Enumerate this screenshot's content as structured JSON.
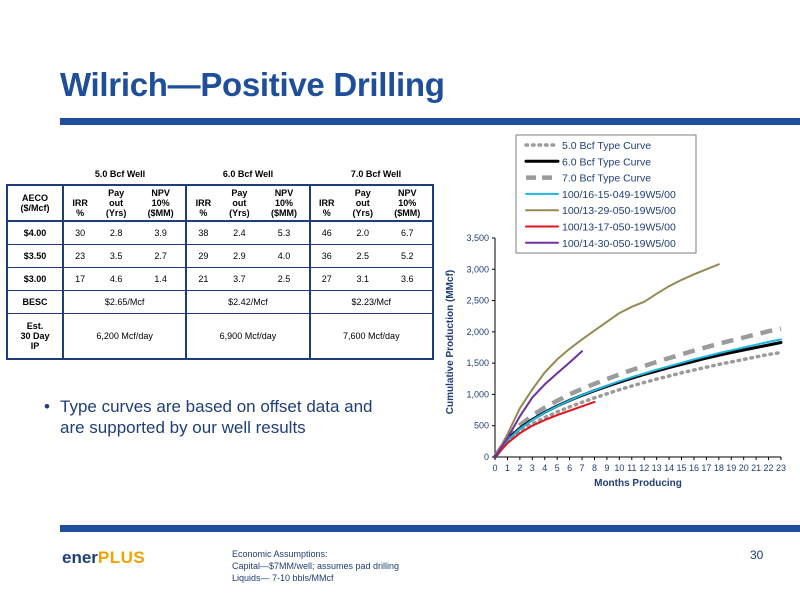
{
  "slide": {
    "title": "Wilrich—Positive Drilling",
    "bullet": "Type curves are based on offset data and are supported by our well results",
    "logo_part1": "ener",
    "logo_part2": "PLUS",
    "page_number": "30",
    "footnote": [
      "Economic Assumptions:",
      "Capital—$7MM/well; assumes pad drilling",
      "Liquids— 7-10 bbls/MMcf"
    ],
    "colors": {
      "brand_blue": "#1f4e9a",
      "logo_orange": "#f3a200"
    }
  },
  "table": {
    "groups": [
      "5.0 Bcf Well",
      "6.0 Bcf Well",
      "7.0 Bcf Well"
    ],
    "header_first": [
      "AECO",
      "($/Mcf)"
    ],
    "sub_headers": [
      [
        "IRR",
        "%"
      ],
      [
        "Pay",
        "out",
        "(Yrs)"
      ],
      [
        "NPV",
        "10%",
        "($MM)"
      ]
    ],
    "rows": [
      {
        "label": "$4.00",
        "values": [
          "30",
          "2.8",
          "3.9",
          "38",
          "2.4",
          "5.3",
          "46",
          "2.0",
          "6.7"
        ]
      },
      {
        "label": "$3.50",
        "values": [
          "23",
          "3.5",
          "2.7",
          "29",
          "2.9",
          "4.0",
          "36",
          "2.5",
          "5.2"
        ]
      },
      {
        "label": "$3.00",
        "values": [
          "17",
          "4.6",
          "1.4",
          "21",
          "3.7",
          "2.5",
          "27",
          "3.1",
          "3.6"
        ]
      }
    ],
    "besc": {
      "label": "BESC",
      "values": [
        "$2.65/Mcf",
        "$2.42/Mcf",
        "$2.23/Mcf"
      ]
    },
    "ip": {
      "label": [
        "Est.",
        "30 Day",
        "IP"
      ],
      "values": [
        "6,200 Mcf/day",
        "6,900 Mcf/day",
        "7,600 Mcf/day"
      ]
    }
  },
  "chart_data": {
    "type": "line",
    "xlabel": "Months Producing",
    "ylabel": "Cumulative Production (MMcf)",
    "xlim": [
      0,
      23
    ],
    "ylim": [
      0,
      3500
    ],
    "x_ticks": [
      "0",
      "1",
      "2",
      "3",
      "4",
      "5",
      "6",
      "7",
      "8",
      "9",
      "10",
      "11",
      "12",
      "13",
      "14",
      "15",
      "16",
      "17",
      "18",
      "19",
      "20",
      "21",
      "22",
      "23"
    ],
    "y_ticks": [
      "0",
      "500",
      "1,000",
      "1,500",
      "2,000",
      "2,500",
      "3,000",
      "3,500"
    ],
    "grid": false,
    "legend_position": "top",
    "series": [
      {
        "name": "5.0 Bcf Type Curve",
        "color": "#9b9b9b",
        "style": "dotted",
        "x": [
          0,
          1,
          2,
          3,
          4,
          5,
          6,
          7,
          8,
          9,
          10,
          11,
          12,
          13,
          14,
          15,
          16,
          17,
          18,
          19,
          20,
          21,
          22,
          23
        ],
        "y": [
          0,
          250,
          410,
          530,
          630,
          720,
          800,
          875,
          945,
          1010,
          1075,
          1135,
          1190,
          1245,
          1295,
          1345,
          1390,
          1435,
          1480,
          1520,
          1560,
          1600,
          1640,
          1670
        ]
      },
      {
        "name": "6.0 Bcf Type Curve",
        "color": "#000000",
        "style": "solid-thick",
        "x": [
          0,
          1,
          2,
          3,
          4,
          5,
          6,
          7,
          8,
          9,
          10,
          11,
          12,
          13,
          14,
          15,
          16,
          17,
          18,
          19,
          20,
          21,
          22,
          23
        ],
        "y": [
          0,
          280,
          460,
          600,
          715,
          815,
          905,
          985,
          1060,
          1130,
          1195,
          1260,
          1320,
          1375,
          1430,
          1480,
          1530,
          1580,
          1625,
          1670,
          1710,
          1750,
          1790,
          1830
        ]
      },
      {
        "name": "7.0 Bcf Type Curve",
        "color": "#9b9b9b",
        "style": "dashed",
        "x": [
          0,
          1,
          2,
          3,
          4,
          5,
          6,
          7,
          8,
          9,
          10,
          11,
          12,
          13,
          14,
          15,
          16,
          17,
          18,
          19,
          20,
          21,
          22,
          23
        ],
        "y": [
          0,
          310,
          510,
          665,
          790,
          900,
          1000,
          1090,
          1170,
          1245,
          1320,
          1390,
          1455,
          1520,
          1580,
          1640,
          1700,
          1755,
          1810,
          1860,
          1910,
          1960,
          2010,
          2050
        ]
      },
      {
        "name": "100/16-15-049-19W5/00",
        "color": "#1fb5e0",
        "style": "solid",
        "x": [
          0,
          1,
          2,
          3,
          4,
          5,
          6,
          7,
          8,
          9,
          10,
          11,
          12,
          13,
          14,
          15,
          16,
          17,
          18,
          19,
          20,
          21,
          22,
          23
        ],
        "y": [
          0,
          270,
          450,
          590,
          710,
          810,
          905,
          990,
          1065,
          1140,
          1210,
          1275,
          1335,
          1395,
          1450,
          1505,
          1560,
          1610,
          1660,
          1705,
          1750,
          1795,
          1840,
          1880
        ]
      },
      {
        "name": "100/13-29-050-19W5/00",
        "color": "#938a55",
        "style": "solid",
        "x": [
          0,
          1,
          2,
          3,
          4,
          5,
          6,
          7,
          8,
          9,
          10,
          11,
          12,
          13,
          14,
          15,
          16,
          17,
          18
        ],
        "y": [
          0,
          360,
          780,
          1080,
          1350,
          1560,
          1730,
          1880,
          2020,
          2160,
          2300,
          2400,
          2480,
          2610,
          2730,
          2830,
          2920,
          3000,
          3080
        ]
      },
      {
        "name": "100/13-17-050-19W5/00",
        "color": "#e0141e",
        "style": "solid",
        "x": [
          0,
          1,
          2,
          3,
          4,
          5,
          6,
          7,
          8
        ],
        "y": [
          0,
          220,
          380,
          500,
          590,
          670,
          740,
          810,
          880
        ]
      },
      {
        "name": "100/14-30-050-19W5/00",
        "color": "#7030a0",
        "style": "solid",
        "x": [
          0,
          1,
          2,
          3,
          4,
          5,
          6,
          7
        ],
        "y": [
          0,
          300,
          650,
          950,
          1160,
          1340,
          1510,
          1690
        ]
      }
    ]
  }
}
